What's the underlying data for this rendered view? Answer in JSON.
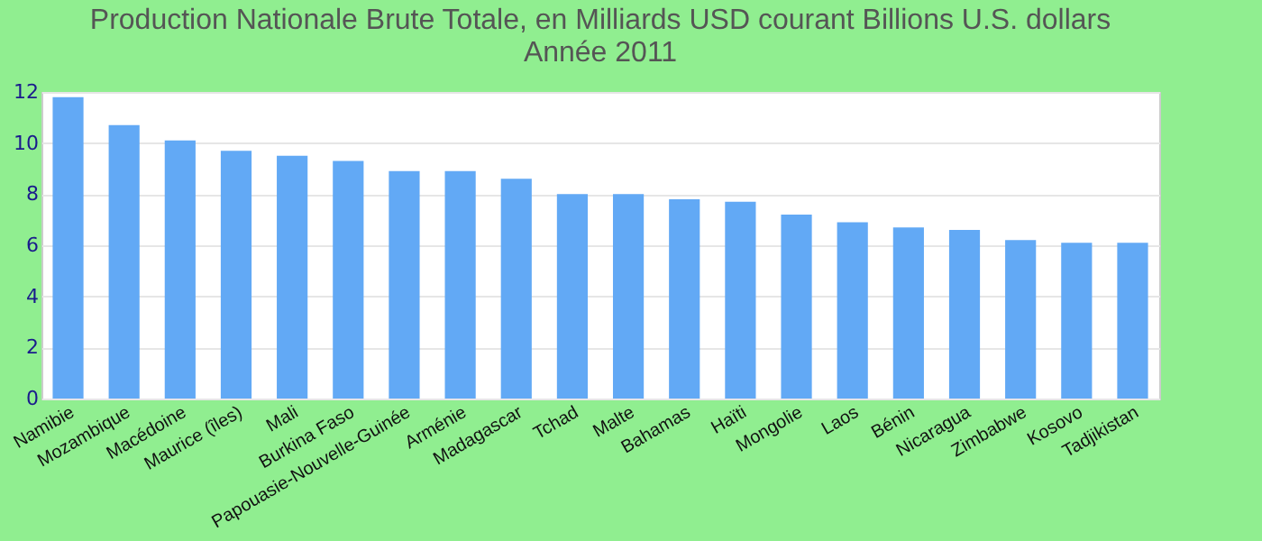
{
  "chart_data": {
    "type": "bar",
    "title": [
      "Production Nationale Brute Totale, en Milliards USD courant Billions U.S. dollars",
      "Année 2011"
    ],
    "categories": [
      "Namibie",
      "Mozambique",
      "Macédoine",
      "Maurice (îles)",
      "Mali",
      "Burkina Faso",
      "Papouasie-Nouvelle-Guinée",
      "Arménie",
      "Madagascar",
      "Tchad",
      "Malte",
      "Bahamas",
      "Haïti",
      "Mongolie",
      "Laos",
      "Bénin",
      "Nicaragua",
      "Zimbabwe",
      "Kosovo",
      "Tadjikistan"
    ],
    "values": [
      11.8,
      10.7,
      10.1,
      9.7,
      9.5,
      9.3,
      8.9,
      8.9,
      8.6,
      8.0,
      8.0,
      7.8,
      7.7,
      7.2,
      6.9,
      6.7,
      6.6,
      6.2,
      6.1,
      6.1
    ],
    "color": "#62a9f5",
    "ylim": [
      0,
      12
    ],
    "yticks": [
      0,
      2,
      4,
      6,
      8,
      10,
      12
    ],
    "grid": "y"
  }
}
